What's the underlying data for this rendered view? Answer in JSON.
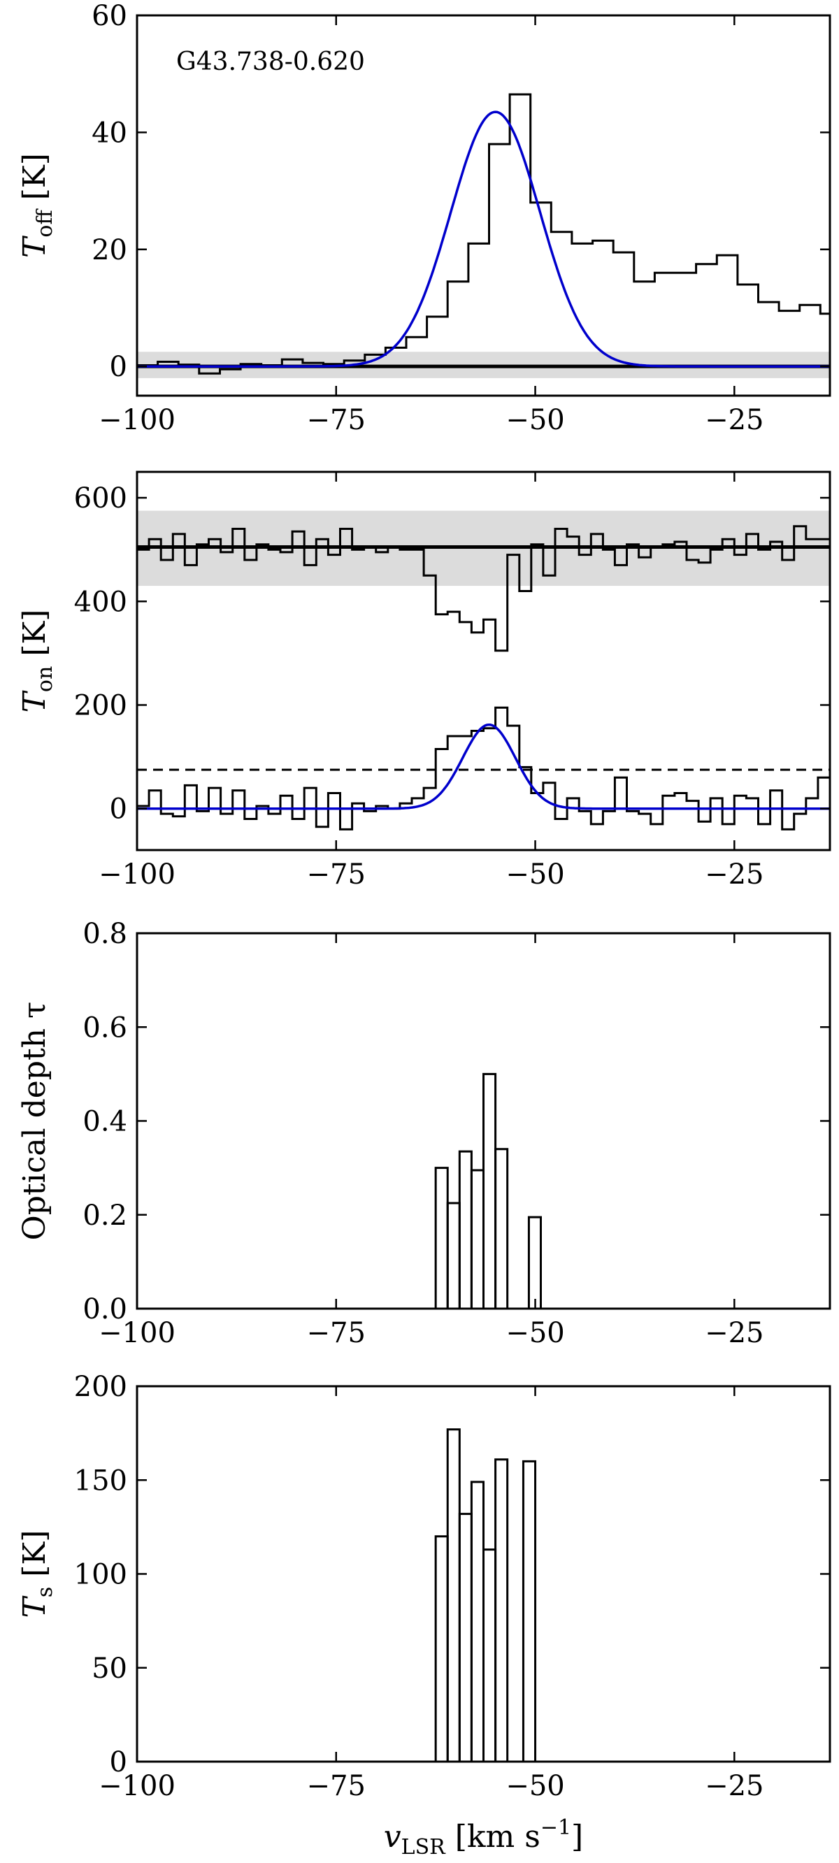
{
  "chart_data": [
    {
      "id": "toff",
      "type": "line",
      "ylabel_main": "T",
      "ylabel_sub": "off",
      "ylabel_unit": " [K]",
      "annotation": "G43.738-0.620",
      "xlim": [
        -100,
        -13
      ],
      "ylim": [
        -5,
        60
      ],
      "xticks": [
        -100,
        -75,
        -50,
        -25
      ],
      "xtick_labels": [
        "−100",
        "−75",
        "−50",
        "−25"
      ],
      "yticks": [
        0,
        20,
        40,
        60
      ],
      "ytick_labels": [
        "0",
        "20",
        "40",
        "60"
      ],
      "band": {
        "y0": -2,
        "y1": 2.5,
        "color": "#dcdcdc"
      },
      "baseline": {
        "y": 0
      },
      "step_series": {
        "x": [
          -100,
          -97.4,
          -94.8,
          -92.2,
          -89.6,
          -87,
          -84.4,
          -81.8,
          -79.2,
          -76.6,
          -74,
          -71.4,
          -68.8,
          -66.2,
          -63.6,
          -61,
          -58.4,
          -55.8,
          -53.2,
          -50.6,
          -48,
          -45.4,
          -42.8,
          -40.2,
          -37.6,
          -35,
          -32.4,
          -29.8,
          -27.2,
          -24.6,
          -22,
          -19.4,
          -16.8,
          -14.2
        ],
        "y": [
          0.2,
          0.8,
          0.3,
          -1.2,
          -0.5,
          0.4,
          0.2,
          1.2,
          0.6,
          0.4,
          1,
          2,
          3.2,
          5,
          8.5,
          14.5,
          21,
          38,
          46.5,
          28,
          23,
          21,
          21.5,
          19.5,
          14.5,
          16,
          16,
          17.5,
          19,
          14,
          11,
          9.5,
          10.5,
          9
        ]
      },
      "gauss_fit": {
        "amp": 43.5,
        "center": -55,
        "sigma": 5.6,
        "color": "#0000cc"
      }
    },
    {
      "id": "ton",
      "type": "line",
      "ylabel_main": "T",
      "ylabel_sub": "on",
      "ylabel_unit": " [K]",
      "xlim": [
        -100,
        -13
      ],
      "ylim": [
        -80,
        650
      ],
      "xticks": [
        -100,
        -75,
        -50,
        -25
      ],
      "xtick_labels": [
        "−100",
        "−75",
        "−50",
        "−25"
      ],
      "yticks": [
        0,
        200,
        400,
        600
      ],
      "ytick_labels": [
        "0",
        "200",
        "400",
        "600"
      ],
      "band": {
        "y0": 430,
        "y1": 575,
        "color": "#dcdcdc"
      },
      "baseline": {
        "y": 505
      },
      "dashed_line": {
        "y": 75
      },
      "upper_series": {
        "x": [
          -100,
          -98.5,
          -97,
          -95.5,
          -94,
          -92.5,
          -91,
          -89.5,
          -88,
          -86.5,
          -85,
          -83.5,
          -82,
          -80.5,
          -79,
          -77.5,
          -76,
          -74.5,
          -73,
          -71.5,
          -70,
          -68.5,
          -67,
          -65.5,
          -64,
          -62.5,
          -61,
          -59.5,
          -58,
          -56.5,
          -55,
          -53.5,
          -52,
          -50.5,
          -49,
          -47.5,
          -46,
          -44.5,
          -43,
          -41.5,
          -40,
          -38.5,
          -37,
          -35.5,
          -34,
          -32.5,
          -31,
          -29.5,
          -28,
          -26.5,
          -25,
          -23.5,
          -22,
          -20.5,
          -19,
          -17.5,
          -16,
          -14.5
        ],
        "y": [
          500,
          520,
          480,
          530,
          470,
          510,
          520,
          495,
          540,
          480,
          510,
          500,
          495,
          535,
          470,
          520,
          490,
          540,
          500,
          505,
          495,
          505,
          500,
          500,
          450,
          375,
          380,
          360,
          340,
          365,
          305,
          490,
          420,
          510,
          450,
          540,
          525,
          490,
          530,
          500,
          470,
          510,
          485,
          505,
          510,
          515,
          480,
          475,
          500,
          520,
          490,
          530,
          500,
          515,
          480,
          545,
          520,
          520
        ]
      },
      "lower_series": {
        "x": [
          -100,
          -98.5,
          -97,
          -95.5,
          -94,
          -92.5,
          -91,
          -89.5,
          -88,
          -86.5,
          -85,
          -83.5,
          -82,
          -80.5,
          -79,
          -77.5,
          -76,
          -74.5,
          -73,
          -71.5,
          -70,
          -68.5,
          -67,
          -65.5,
          -64,
          -62.5,
          -61,
          -59.5,
          -58,
          -56.5,
          -55,
          -53.5,
          -52,
          -50.5,
          -49,
          -47.5,
          -46,
          -44.5,
          -43,
          -41.5,
          -40,
          -38.5,
          -37,
          -35.5,
          -34,
          -32.5,
          -31,
          -29.5,
          -28,
          -26.5,
          -25,
          -23.5,
          -22,
          -20.5,
          -19,
          -17.5,
          -16,
          -14.5
        ],
        "y": [
          5,
          35,
          -10,
          -15,
          45,
          -5,
          40,
          -10,
          35,
          -20,
          5,
          -10,
          25,
          -20,
          40,
          -35,
          30,
          -40,
          10,
          -5,
          5,
          0,
          10,
          20,
          40,
          115,
          140,
          140,
          150,
          155,
          195,
          160,
          80,
          30,
          50,
          -20,
          20,
          -5,
          -30,
          -5,
          60,
          -5,
          -10,
          -30,
          25,
          30,
          15,
          -25,
          20,
          -30,
          25,
          20,
          -30,
          35,
          -40,
          -10,
          20,
          60
        ]
      },
      "gauss_fit": {
        "amp": 162,
        "center": -55.8,
        "sigma": 3.3,
        "color": "#0000cc"
      }
    },
    {
      "id": "tau",
      "type": "line",
      "ylabel": "Optical depth τ",
      "xlim": [
        -100,
        -13
      ],
      "ylim": [
        0,
        0.8
      ],
      "xticks": [
        -100,
        -75,
        -50,
        -25
      ],
      "xtick_labels": [
        "−100",
        "−75",
        "−50",
        "−25"
      ],
      "yticks": [
        0,
        0.2,
        0.4,
        0.6,
        0.8
      ],
      "ytick_labels": [
        "0.0",
        "0.2",
        "0.4",
        "0.6",
        "0.8"
      ],
      "bars": [
        {
          "x0": -62.5,
          "x1": -61,
          "y": 0.3
        },
        {
          "x0": -61,
          "x1": -59.5,
          "y": 0.225
        },
        {
          "x0": -59.5,
          "x1": -58,
          "y": 0.335
        },
        {
          "x0": -58,
          "x1": -56.5,
          "y": 0.295
        },
        {
          "x0": -56.5,
          "x1": -55,
          "y": 0.5
        },
        {
          "x0": -55,
          "x1": -53.5,
          "y": 0.34
        },
        {
          "x0": -50.8,
          "x1": -49.3,
          "y": 0.195
        }
      ]
    },
    {
      "id": "ts",
      "type": "line",
      "ylabel_main": "T",
      "ylabel_sub": "s",
      "ylabel_unit": " [K]",
      "xlabel_main": "v",
      "xlabel_sub": "LSR",
      "xlabel_unit": " [km s",
      "xlabel_exp": "−1",
      "xlabel_close": "]",
      "xlim": [
        -100,
        -13
      ],
      "ylim": [
        0,
        200
      ],
      "xticks": [
        -100,
        -75,
        -50,
        -25
      ],
      "xtick_labels": [
        "−100",
        "−75",
        "−50",
        "−25"
      ],
      "yticks": [
        0,
        50,
        100,
        150,
        200
      ],
      "ytick_labels": [
        "0",
        "50",
        "100",
        "150",
        "200"
      ],
      "bars": [
        {
          "x0": -62.5,
          "x1": -61,
          "y": 120
        },
        {
          "x0": -61,
          "x1": -59.5,
          "y": 177
        },
        {
          "x0": -59.5,
          "x1": -58,
          "y": 132
        },
        {
          "x0": -58,
          "x1": -56.5,
          "y": 149
        },
        {
          "x0": -56.5,
          "x1": -55,
          "y": 113
        },
        {
          "x0": -55,
          "x1": -53.5,
          "y": 161
        },
        {
          "x0": -51.5,
          "x1": -50,
          "y": 160
        }
      ]
    }
  ]
}
